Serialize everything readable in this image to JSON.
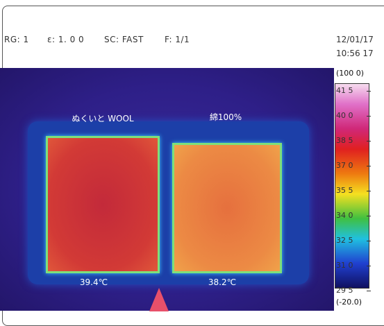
{
  "header": {
    "status": [
      "RG: 1",
      "ε: 1. 0 0",
      "SC: FAST",
      "F: 1/1"
    ],
    "date": "12/01/17",
    "time": "10:56 17"
  },
  "image": {
    "labels": [
      {
        "name": "ぬくいと WOOL",
        "temperature": "39.4℃"
      },
      {
        "name": "綿100%",
        "temperature": "38.2℃"
      }
    ]
  },
  "scale": {
    "max": "(100 0)",
    "min": "(-20.0)",
    "ticks": [
      "41 5",
      "40 0",
      "38 5",
      "37 0",
      "35 5",
      "34 0",
      "32 5",
      "31 0",
      "29 5"
    ]
  }
}
